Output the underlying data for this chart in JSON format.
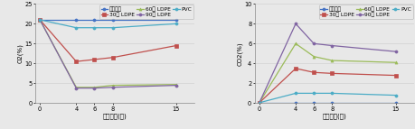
{
  "x": [
    0,
    4,
    6,
    8,
    15
  ],
  "left_chart": {
    "ylabel": "O2(%)",
    "xlabel": "유통기간(일)",
    "ylim": [
      0,
      25
    ],
    "yticks": [
      0,
      5,
      10,
      15,
      20,
      25
    ],
    "series": [
      {
        "label": "유공필름",
        "color": "#4472C4",
        "values": [
          21.0,
          21.0,
          21.0,
          21.0,
          21.0
        ],
        "marker": "o",
        "linestyle": "-"
      },
      {
        "label": "30㎎ LDPE",
        "color": "#C0504D",
        "values": [
          21.0,
          10.5,
          11.0,
          11.5,
          14.5
        ],
        "marker": "s",
        "linestyle": "-"
      },
      {
        "label": "60㎎ LDPE",
        "color": "#9BBB59",
        "values": [
          21.0,
          4.0,
          4.0,
          4.5,
          4.7
        ],
        "marker": "^",
        "linestyle": "-"
      },
      {
        "label": "90㎎ LDPE",
        "color": "#8064A2",
        "values": [
          21.0,
          3.8,
          3.8,
          4.0,
          4.5
        ],
        "marker": "o",
        "linestyle": "-"
      },
      {
        "label": "PVC",
        "color": "#4BACC6",
        "values": [
          21.0,
          19.0,
          19.0,
          19.0,
          20.0
        ],
        "marker": "o",
        "linestyle": "-"
      }
    ]
  },
  "right_chart": {
    "ylabel": "CO2(%)",
    "xlabel": "유통기간(일)",
    "ylim": [
      0,
      10
    ],
    "yticks": [
      0,
      2,
      4,
      6,
      8,
      10
    ],
    "series": [
      {
        "label": "유공필름",
        "color": "#4472C4",
        "values": [
          0.05,
          0.05,
          0.05,
          0.05,
          0.05
        ],
        "marker": "o",
        "linestyle": "-"
      },
      {
        "label": "30㎎ LDPE",
        "color": "#C0504D",
        "values": [
          0.05,
          3.5,
          3.1,
          3.0,
          2.8
        ],
        "marker": "s",
        "linestyle": "-"
      },
      {
        "label": "60㎎ LDPE",
        "color": "#9BBB59",
        "values": [
          0.05,
          6.0,
          4.7,
          4.3,
          4.1
        ],
        "marker": "^",
        "linestyle": "-"
      },
      {
        "label": "90㎎ LDPE",
        "color": "#8064A2",
        "values": [
          0.05,
          8.0,
          6.0,
          5.8,
          5.2
        ],
        "marker": "o",
        "linestyle": "-"
      },
      {
        "label": "PVC",
        "color": "#4BACC6",
        "values": [
          0.05,
          1.0,
          1.0,
          1.0,
          0.8
        ],
        "marker": "o",
        "linestyle": "-"
      }
    ]
  },
  "bg_color": "#E8E8E8",
  "fontsize": 5.0,
  "tick_fontsize": 4.8,
  "linewidth": 0.9,
  "markersize": 2.2
}
